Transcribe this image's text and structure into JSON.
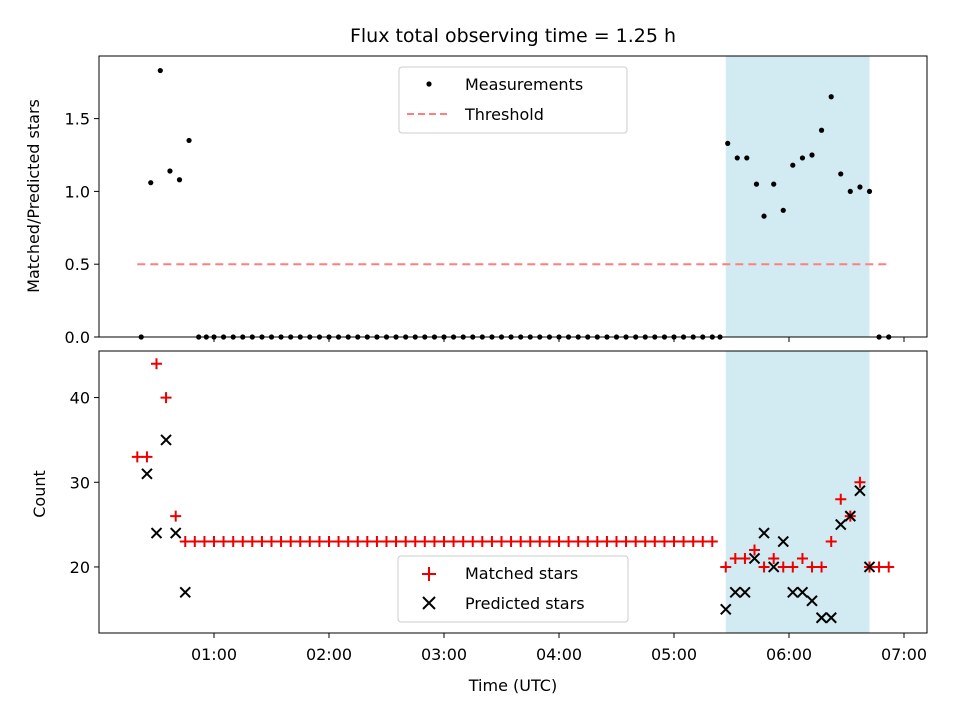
{
  "title": "Flux total observing time = 1.25 h",
  "colors": {
    "measurement": "#000000",
    "threshold": "#ff7f7f",
    "matched": "#ee0000",
    "predicted": "#000000",
    "shade": "#add8e6"
  },
  "chart_data": [
    {
      "type": "scatter",
      "name": "ratio",
      "ylabel": "Matched/Predicted stars",
      "ylim": [
        0,
        1.93
      ],
      "yticks": [
        0.0,
        0.5,
        1.0,
        1.5
      ],
      "ytick_labels": [
        "0.0",
        "0.5",
        "1.0",
        "1.5"
      ],
      "legend": [
        "Measurements",
        "Threshold"
      ],
      "legend_position": "upper center",
      "threshold": {
        "value": 0.5,
        "x_range": [
          0.333,
          6.867
        ]
      },
      "shaded_region": [
        5.45,
        6.7
      ],
      "series": [
        {
          "name": "Measurements",
          "points": [
            [
              0.367,
              0
            ],
            [
              0.45,
              1.06
            ],
            [
              0.533,
              1.83
            ],
            [
              0.617,
              1.14
            ],
            [
              0.7,
              1.08
            ],
            [
              0.783,
              1.35
            ],
            [
              0.867,
              0
            ],
            [
              0.933,
              0
            ],
            [
              1.0,
              0
            ],
            [
              1.083,
              0
            ],
            [
              1.167,
              0
            ],
            [
              1.25,
              0
            ],
            [
              1.333,
              0
            ],
            [
              1.417,
              0
            ],
            [
              1.5,
              0
            ],
            [
              1.583,
              0
            ],
            [
              1.667,
              0
            ],
            [
              1.75,
              0
            ],
            [
              1.833,
              0
            ],
            [
              1.917,
              0
            ],
            [
              2.0,
              0
            ],
            [
              2.083,
              0
            ],
            [
              2.167,
              0
            ],
            [
              2.25,
              0
            ],
            [
              2.333,
              0
            ],
            [
              2.417,
              0
            ],
            [
              2.5,
              0
            ],
            [
              2.583,
              0
            ],
            [
              2.667,
              0
            ],
            [
              2.75,
              0
            ],
            [
              2.833,
              0
            ],
            [
              2.917,
              0
            ],
            [
              3.0,
              0
            ],
            [
              3.083,
              0
            ],
            [
              3.167,
              0
            ],
            [
              3.25,
              0
            ],
            [
              3.333,
              0
            ],
            [
              3.417,
              0
            ],
            [
              3.5,
              0
            ],
            [
              3.583,
              0
            ],
            [
              3.667,
              0
            ],
            [
              3.75,
              0
            ],
            [
              3.833,
              0
            ],
            [
              3.917,
              0
            ],
            [
              4.0,
              0
            ],
            [
              4.083,
              0
            ],
            [
              4.167,
              0
            ],
            [
              4.25,
              0
            ],
            [
              4.333,
              0
            ],
            [
              4.417,
              0
            ],
            [
              4.5,
              0
            ],
            [
              4.583,
              0
            ],
            [
              4.667,
              0
            ],
            [
              4.75,
              0
            ],
            [
              4.833,
              0
            ],
            [
              4.917,
              0
            ],
            [
              5.0,
              0
            ],
            [
              5.083,
              0
            ],
            [
              5.167,
              0
            ],
            [
              5.25,
              0
            ],
            [
              5.333,
              0
            ],
            [
              5.4,
              0
            ],
            [
              5.467,
              1.33
            ],
            [
              5.55,
              1.23
            ],
            [
              5.633,
              1.23
            ],
            [
              5.717,
              1.05
            ],
            [
              5.783,
              0.83
            ],
            [
              5.867,
              1.05
            ],
            [
              5.95,
              0.87
            ],
            [
              6.033,
              1.18
            ],
            [
              6.117,
              1.23
            ],
            [
              6.2,
              1.25
            ],
            [
              6.283,
              1.42
            ],
            [
              6.367,
              1.65
            ],
            [
              6.45,
              1.12
            ],
            [
              6.533,
              1.0
            ],
            [
              6.617,
              1.03
            ],
            [
              6.7,
              1.0
            ],
            [
              6.783,
              0
            ],
            [
              6.867,
              0
            ]
          ]
        }
      ]
    },
    {
      "type": "scatter",
      "name": "counts",
      "xlabel": "Time (UTC)",
      "ylabel": "Count",
      "xlim": [
        0.0,
        7.2
      ],
      "ylim": [
        12.2,
        45.5
      ],
      "yticks": [
        20,
        30,
        40
      ],
      "ytick_labels": [
        "20",
        "30",
        "40"
      ],
      "xticks": [
        1,
        2,
        3,
        4,
        5,
        6,
        7
      ],
      "xtick_labels": [
        "01:00",
        "02:00",
        "03:00",
        "04:00",
        "05:00",
        "06:00",
        "07:00"
      ],
      "legend": [
        "Matched stars",
        "Predicted stars"
      ],
      "legend_position": "lower center",
      "shaded_region": [
        5.45,
        6.7
      ],
      "series": [
        {
          "name": "Matched stars",
          "marker": "plus",
          "points": [
            [
              0.333,
              33
            ],
            [
              0.417,
              33
            ],
            [
              0.5,
              44
            ],
            [
              0.583,
              40
            ],
            [
              0.667,
              26
            ],
            [
              0.75,
              23
            ],
            [
              0.833,
              23
            ],
            [
              0.917,
              23
            ],
            [
              1.0,
              23
            ],
            [
              1.083,
              23
            ],
            [
              1.167,
              23
            ],
            [
              1.25,
              23
            ],
            [
              1.333,
              23
            ],
            [
              1.417,
              23
            ],
            [
              1.5,
              23
            ],
            [
              1.583,
              23
            ],
            [
              1.667,
              23
            ],
            [
              1.75,
              23
            ],
            [
              1.833,
              23
            ],
            [
              1.917,
              23
            ],
            [
              2.0,
              23
            ],
            [
              2.083,
              23
            ],
            [
              2.167,
              23
            ],
            [
              2.25,
              23
            ],
            [
              2.333,
              23
            ],
            [
              2.417,
              23
            ],
            [
              2.5,
              23
            ],
            [
              2.583,
              23
            ],
            [
              2.667,
              23
            ],
            [
              2.75,
              23
            ],
            [
              2.833,
              23
            ],
            [
              2.917,
              23
            ],
            [
              3.0,
              23
            ],
            [
              3.083,
              23
            ],
            [
              3.167,
              23
            ],
            [
              3.25,
              23
            ],
            [
              3.333,
              23
            ],
            [
              3.417,
              23
            ],
            [
              3.5,
              23
            ],
            [
              3.583,
              23
            ],
            [
              3.667,
              23
            ],
            [
              3.75,
              23
            ],
            [
              3.833,
              23
            ],
            [
              3.917,
              23
            ],
            [
              4.0,
              23
            ],
            [
              4.083,
              23
            ],
            [
              4.167,
              23
            ],
            [
              4.25,
              23
            ],
            [
              4.333,
              23
            ],
            [
              4.417,
              23
            ],
            [
              4.5,
              23
            ],
            [
              4.583,
              23
            ],
            [
              4.667,
              23
            ],
            [
              4.75,
              23
            ],
            [
              4.833,
              23
            ],
            [
              4.917,
              23
            ],
            [
              5.0,
              23
            ],
            [
              5.083,
              23
            ],
            [
              5.167,
              23
            ],
            [
              5.25,
              23
            ],
            [
              5.333,
              23
            ],
            [
              5.45,
              20
            ],
            [
              5.533,
              21
            ],
            [
              5.617,
              21
            ],
            [
              5.7,
              22
            ],
            [
              5.783,
              20
            ],
            [
              5.867,
              21
            ],
            [
              5.95,
              20
            ],
            [
              6.033,
              20
            ],
            [
              6.117,
              21
            ],
            [
              6.2,
              20
            ],
            [
              6.283,
              20
            ],
            [
              6.367,
              23
            ],
            [
              6.45,
              28
            ],
            [
              6.533,
              26
            ],
            [
              6.617,
              30
            ],
            [
              6.7,
              20
            ],
            [
              6.783,
              20
            ],
            [
              6.867,
              20
            ]
          ]
        },
        {
          "name": "Predicted stars",
          "marker": "x",
          "points": [
            [
              0.417,
              31
            ],
            [
              0.5,
              24
            ],
            [
              0.583,
              35
            ],
            [
              0.667,
              24
            ],
            [
              0.75,
              17
            ],
            [
              5.45,
              15
            ],
            [
              5.533,
              17
            ],
            [
              5.617,
              17
            ],
            [
              5.7,
              21
            ],
            [
              5.783,
              24
            ],
            [
              5.867,
              20
            ],
            [
              5.95,
              23
            ],
            [
              6.033,
              17
            ],
            [
              6.117,
              17
            ],
            [
              6.2,
              16
            ],
            [
              6.283,
              14
            ],
            [
              6.367,
              14
            ],
            [
              6.45,
              25
            ],
            [
              6.533,
              26
            ],
            [
              6.617,
              29
            ],
            [
              6.7,
              20
            ]
          ]
        }
      ]
    }
  ]
}
